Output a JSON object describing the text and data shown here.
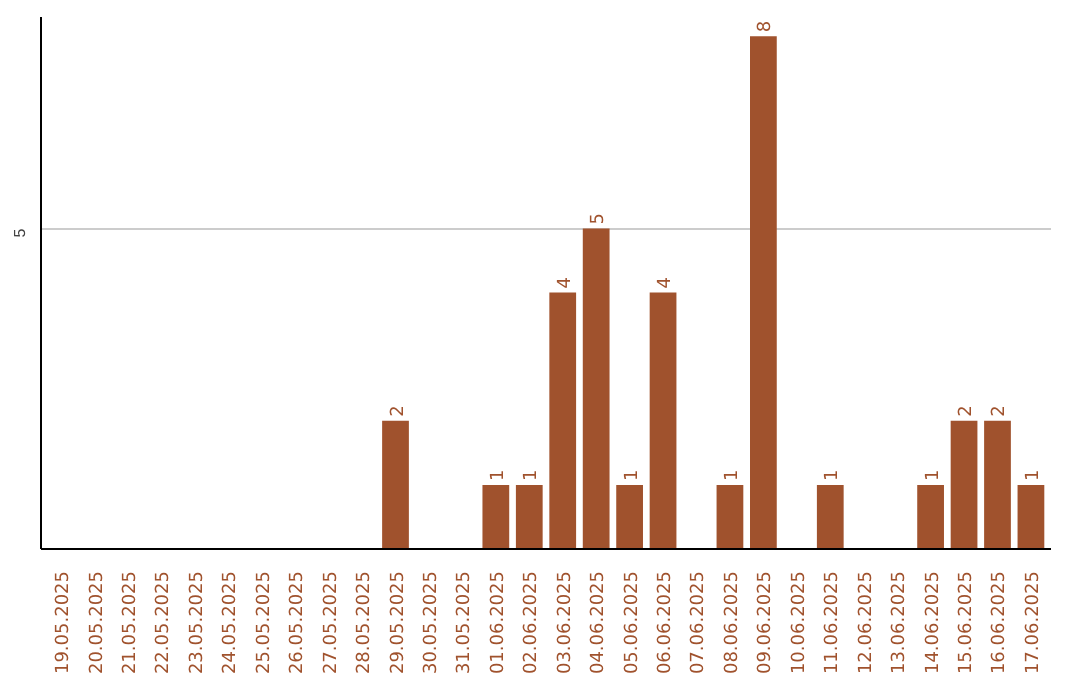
{
  "chart_data": {
    "type": "bar",
    "categories": [
      "19.05.2025",
      "20.05.2025",
      "21.05.2025",
      "22.05.2025",
      "23.05.2025",
      "24.05.2025",
      "25.05.2025",
      "26.05.2025",
      "27.05.2025",
      "28.05.2025",
      "29.05.2025",
      "30.05.2025",
      "31.05.2025",
      "01.06.2025",
      "02.06.2025",
      "03.06.2025",
      "04.06.2025",
      "05.06.2025",
      "06.06.2025",
      "07.06.2025",
      "08.06.2025",
      "09.06.2025",
      "10.06.2025",
      "11.06.2025",
      "12.06.2025",
      "13.06.2025",
      "14.06.2025",
      "15.06.2025",
      "16.06.2025",
      "17.06.2025"
    ],
    "values": [
      0,
      0,
      0,
      0,
      0,
      0,
      0,
      0,
      0,
      0,
      2,
      0,
      0,
      1,
      1,
      4,
      5,
      1,
      4,
      0,
      1,
      8,
      0,
      1,
      0,
      0,
      1,
      2,
      2,
      1
    ],
    "value_labels": [
      null,
      null,
      null,
      null,
      null,
      null,
      null,
      null,
      null,
      null,
      "2",
      null,
      null,
      "1",
      "1",
      "4",
      "5",
      "1",
      "4",
      null,
      "1",
      "8",
      null,
      "1",
      null,
      null,
      "1",
      "2",
      "2",
      "1"
    ],
    "color": "#a0522d",
    "ylim": [
      0,
      8.3
    ],
    "yticks": [
      5
    ],
    "grid": "y"
  }
}
